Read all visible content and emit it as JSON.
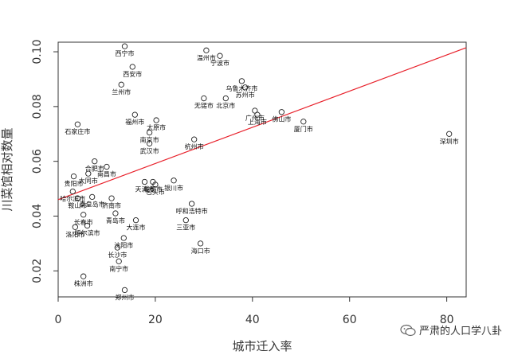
{
  "chart_data": {
    "type": "scatter",
    "xlabel": "城市迁入率",
    "ylabel": "川菜馆相对数量",
    "xlim": [
      0,
      84
    ],
    "ylim": [
      0.0105,
      0.1035
    ],
    "xticks": [
      0,
      20,
      40,
      60,
      80
    ],
    "yticks": [
      0.02,
      0.04,
      0.06,
      0.08,
      0.1
    ],
    "ytick_labels": [
      "0.02",
      "0.04",
      "0.06",
      "0.08",
      "0.10"
    ],
    "grid": false,
    "fit_line": {
      "x": [
        0,
        84
      ],
      "y": [
        0.046,
        0.1015
      ],
      "color": "#e8202a"
    },
    "points": [
      {
        "x": 13.7,
        "y": 0.102,
        "label": "西宁市"
      },
      {
        "x": 15.3,
        "y": 0.0945,
        "label": "西安市"
      },
      {
        "x": 13.0,
        "y": 0.088,
        "label": "兰州市"
      },
      {
        "x": 15.8,
        "y": 0.077,
        "label": "福州市"
      },
      {
        "x": 20.2,
        "y": 0.075,
        "label": "太原市"
      },
      {
        "x": 18.8,
        "y": 0.0705,
        "label": "南京市"
      },
      {
        "x": 18.8,
        "y": 0.0665,
        "label": "武汉市"
      },
      {
        "x": 4.0,
        "y": 0.0735,
        "label": "石家庄市"
      },
      {
        "x": 7.5,
        "y": 0.06,
        "label": "合肥市"
      },
      {
        "x": 10.0,
        "y": 0.058,
        "label": "南昌市"
      },
      {
        "x": 6.2,
        "y": 0.0555,
        "label": "大同市"
      },
      {
        "x": 3.2,
        "y": 0.0545,
        "label": "贵阳市"
      },
      {
        "x": 3.0,
        "y": 0.049,
        "label": "哈尔滨市"
      },
      {
        "x": 4.0,
        "y": 0.0465,
        "label": "鞍山市"
      },
      {
        "x": 7.0,
        "y": 0.047,
        "label": "秦皇岛市"
      },
      {
        "x": 11.0,
        "y": 0.0465,
        "label": "济南市"
      },
      {
        "x": 5.2,
        "y": 0.0405,
        "label": "长春市"
      },
      {
        "x": 3.5,
        "y": 0.036,
        "label": "洛阳市"
      },
      {
        "x": 6.0,
        "y": 0.0365,
        "label": "呼尔滨市"
      },
      {
        "x": 11.8,
        "y": 0.041,
        "label": "青岛市"
      },
      {
        "x": 16.0,
        "y": 0.0385,
        "label": "大连市"
      },
      {
        "x": 13.5,
        "y": 0.032,
        "label": "沈阳市"
      },
      {
        "x": 12.2,
        "y": 0.0285,
        "label": "长沙市"
      },
      {
        "x": 12.5,
        "y": 0.0235,
        "label": "南宁市"
      },
      {
        "x": 5.2,
        "y": 0.018,
        "label": "株洲市"
      },
      {
        "x": 13.7,
        "y": 0.013,
        "label": "郑州市"
      },
      {
        "x": 17.8,
        "y": 0.0525,
        "label": "天津市"
      },
      {
        "x": 19.5,
        "y": 0.0525,
        "label": "成都市"
      },
      {
        "x": 20.0,
        "y": 0.0515,
        "label": "包头市"
      },
      {
        "x": 23.8,
        "y": 0.053,
        "label": "银川市"
      },
      {
        "x": 27.5,
        "y": 0.0445,
        "label": "呼和浩特市"
      },
      {
        "x": 26.3,
        "y": 0.0385,
        "label": "三亚市"
      },
      {
        "x": 29.3,
        "y": 0.03,
        "label": "海口市"
      },
      {
        "x": 28.0,
        "y": 0.068,
        "label": "杭州市"
      },
      {
        "x": 30.5,
        "y": 0.1005,
        "label": "温州市"
      },
      {
        "x": 33.3,
        "y": 0.0985,
        "label": "宁波市"
      },
      {
        "x": 30.0,
        "y": 0.083,
        "label": "无锡市"
      },
      {
        "x": 34.5,
        "y": 0.083,
        "label": "北京市"
      },
      {
        "x": 37.8,
        "y": 0.0893,
        "label": "乌鲁木齐市"
      },
      {
        "x": 38.5,
        "y": 0.087,
        "label": "苏州市"
      },
      {
        "x": 40.5,
        "y": 0.0785,
        "label": "广州市"
      },
      {
        "x": 41.0,
        "y": 0.077,
        "label": "上海市"
      },
      {
        "x": 46.0,
        "y": 0.078,
        "label": "佛山市"
      },
      {
        "x": 50.5,
        "y": 0.0745,
        "label": "厦门市"
      },
      {
        "x": 80.5,
        "y": 0.07,
        "label": "深圳市"
      }
    ]
  },
  "watermark": {
    "text": "严肃的人口学八卦",
    "icon": "wechat-icon"
  }
}
